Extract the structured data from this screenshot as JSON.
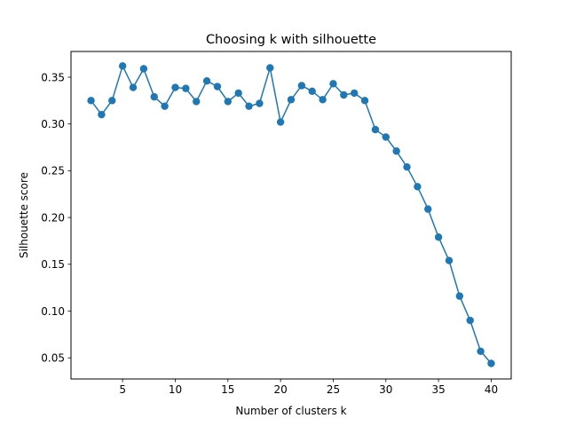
{
  "chart_data": {
    "type": "line",
    "title": "Choosing k with silhouette",
    "xlabel": "Number of clusters k",
    "ylabel": "Silhouette score",
    "xlim": [
      0.1,
      41.9
    ],
    "ylim": [
      0.0274,
      0.3775
    ],
    "xticks": [
      5,
      10,
      15,
      20,
      25,
      30,
      35,
      40
    ],
    "yticks": [
      0.05,
      0.1,
      0.15,
      0.2,
      0.25,
      0.3,
      0.35
    ],
    "xtick_labels": [
      "5",
      "10",
      "15",
      "20",
      "25",
      "30",
      "35",
      "40"
    ],
    "ytick_labels": [
      "0.05",
      "0.10",
      "0.15",
      "0.20",
      "0.25",
      "0.30",
      "0.35"
    ],
    "grid": false,
    "markers": true,
    "line_color": "#1f77b4",
    "x": [
      2,
      3,
      4,
      5,
      6,
      7,
      8,
      9,
      10,
      11,
      12,
      13,
      14,
      15,
      16,
      17,
      18,
      19,
      20,
      21,
      22,
      23,
      24,
      25,
      26,
      27,
      28,
      29,
      30,
      31,
      32,
      33,
      34,
      35,
      36,
      37,
      38,
      39,
      40
    ],
    "series": [
      {
        "values": [
          0.325,
          0.31,
          0.325,
          0.362,
          0.339,
          0.359,
          0.329,
          0.319,
          0.339,
          0.338,
          0.324,
          0.346,
          0.34,
          0.324,
          0.333,
          0.319,
          0.322,
          0.36,
          0.302,
          0.326,
          0.341,
          0.335,
          0.326,
          0.343,
          0.331,
          0.333,
          0.325,
          0.294,
          0.286,
          0.271,
          0.254,
          0.233,
          0.209,
          0.179,
          0.154,
          0.116,
          0.09,
          0.057,
          0.044
        ]
      }
    ]
  }
}
